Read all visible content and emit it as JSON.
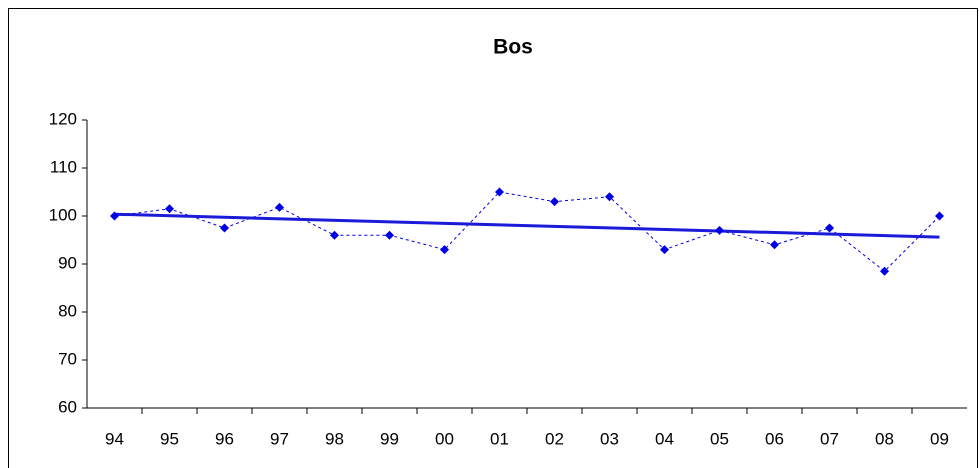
{
  "chart_data": {
    "type": "line",
    "title": "Bos",
    "categories": [
      "94",
      "95",
      "96",
      "97",
      "98",
      "99",
      "00",
      "01",
      "02",
      "03",
      "04",
      "05",
      "06",
      "07",
      "08",
      "09"
    ],
    "series": [
      {
        "color": "#0000e6",
        "values": [
          100,
          101.5,
          97.5,
          101.8,
          96,
          96,
          93,
          105,
          103,
          104,
          93,
          97,
          94,
          97.5,
          88.5,
          100
        ]
      }
    ],
    "trendline": {
      "type": "linear",
      "color": "#1a1ad8"
    },
    "ylim": [
      60,
      120
    ],
    "yticks": [
      60,
      70,
      80,
      90,
      100,
      110,
      120
    ],
    "grid": false
  }
}
